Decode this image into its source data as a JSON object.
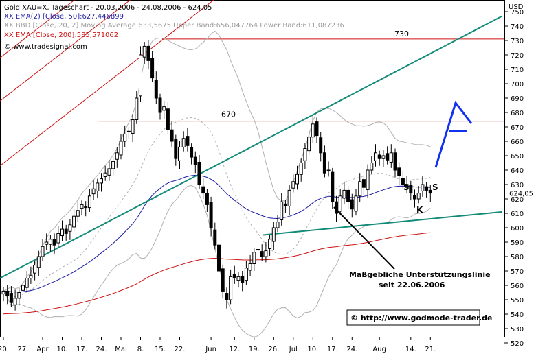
{
  "chart_data": {
    "type": "candlestick",
    "title": "Gold XAU=X, Tageschart - 20.03.2006 - 24.08.2006 - 624,05",
    "currency_label": "USD",
    "source": "www.tradesignal.com",
    "legend": [
      {
        "text": "XX EMA(2) [Close, 50]:627,446899",
        "color": "#1a1aa6"
      },
      {
        "text": "XX BBD [Close, 20, 2] Moving Average:633,5675 Upper Band:656,047764 Lower Band:611,087236",
        "color": "#9a9a9a"
      },
      {
        "text": "XX EMA [Close, 200]:585,571062",
        "color": "#cc1111"
      }
    ],
    "ylim": [
      519,
      752
    ],
    "y_ticks": [
      520,
      530,
      540,
      550,
      560,
      570,
      580,
      590,
      600,
      610,
      620,
      630,
      640,
      650,
      660,
      670,
      680,
      690,
      700,
      710,
      720,
      730,
      740,
      750
    ],
    "last_price_label": "624,05",
    "x_ticks": [
      {
        "label": "20.",
        "i": 0
      },
      {
        "label": "27.",
        "i": 5
      },
      {
        "label": "Apr",
        "i": 10
      },
      {
        "label": "10.",
        "i": 15
      },
      {
        "label": "17.",
        "i": 20
      },
      {
        "label": "24.",
        "i": 25
      },
      {
        "label": "Mai",
        "i": 30
      },
      {
        "label": "8.",
        "i": 35
      },
      {
        "label": "15.",
        "i": 40
      },
      {
        "label": "22.",
        "i": 45
      },
      {
        "label": "Jun",
        "i": 53
      },
      {
        "label": "12.",
        "i": 59
      },
      {
        "label": "19.",
        "i": 64
      },
      {
        "label": "26.",
        "i": 69
      },
      {
        "label": "Jul",
        "i": 74
      },
      {
        "label": "10.",
        "i": 79
      },
      {
        "label": "17.",
        "i": 84
      },
      {
        "label": "24.",
        "i": 89
      },
      {
        "label": "Aug",
        "i": 96
      },
      {
        "label": "14.",
        "i": 104
      },
      {
        "label": "21.",
        "i": 109
      }
    ],
    "close": [
      556,
      553,
      548,
      551,
      555,
      560,
      565,
      567,
      574,
      580,
      587,
      590,
      592,
      588,
      596,
      599,
      596,
      602,
      608,
      612,
      616,
      614,
      622,
      627,
      631,
      634,
      638,
      641,
      646,
      652,
      660,
      665,
      667,
      675,
      690,
      720,
      726,
      716,
      704,
      690,
      680,
      684,
      668,
      660,
      648,
      656,
      662,
      657,
      649,
      644,
      630,
      624,
      616,
      600,
      588,
      570,
      556,
      550,
      566,
      565,
      566,
      562,
      572,
      575,
      583,
      585,
      580,
      584,
      592,
      600,
      604,
      618,
      615,
      626,
      632,
      637,
      645,
      655,
      663,
      672,
      664,
      652,
      638,
      640,
      618,
      610,
      622,
      626,
      618,
      613,
      622,
      632,
      628,
      640,
      645,
      652,
      648,
      650,
      647,
      652,
      640,
      636,
      630,
      628,
      624,
      620,
      624,
      630,
      626,
      624
    ],
    "annotations": {
      "resistance_730": {
        "label": "730",
        "value": 731
      },
      "resistance_670": {
        "label": "670",
        "value": 674
      },
      "support_label": "Maßgebliche Unterstützungslinie",
      "support_date": "seit 22.06.2006",
      "shoulder_left": "S",
      "head": "K",
      "shoulder_right": "S"
    },
    "credit": "© http://www.godmode-trader.de"
  }
}
